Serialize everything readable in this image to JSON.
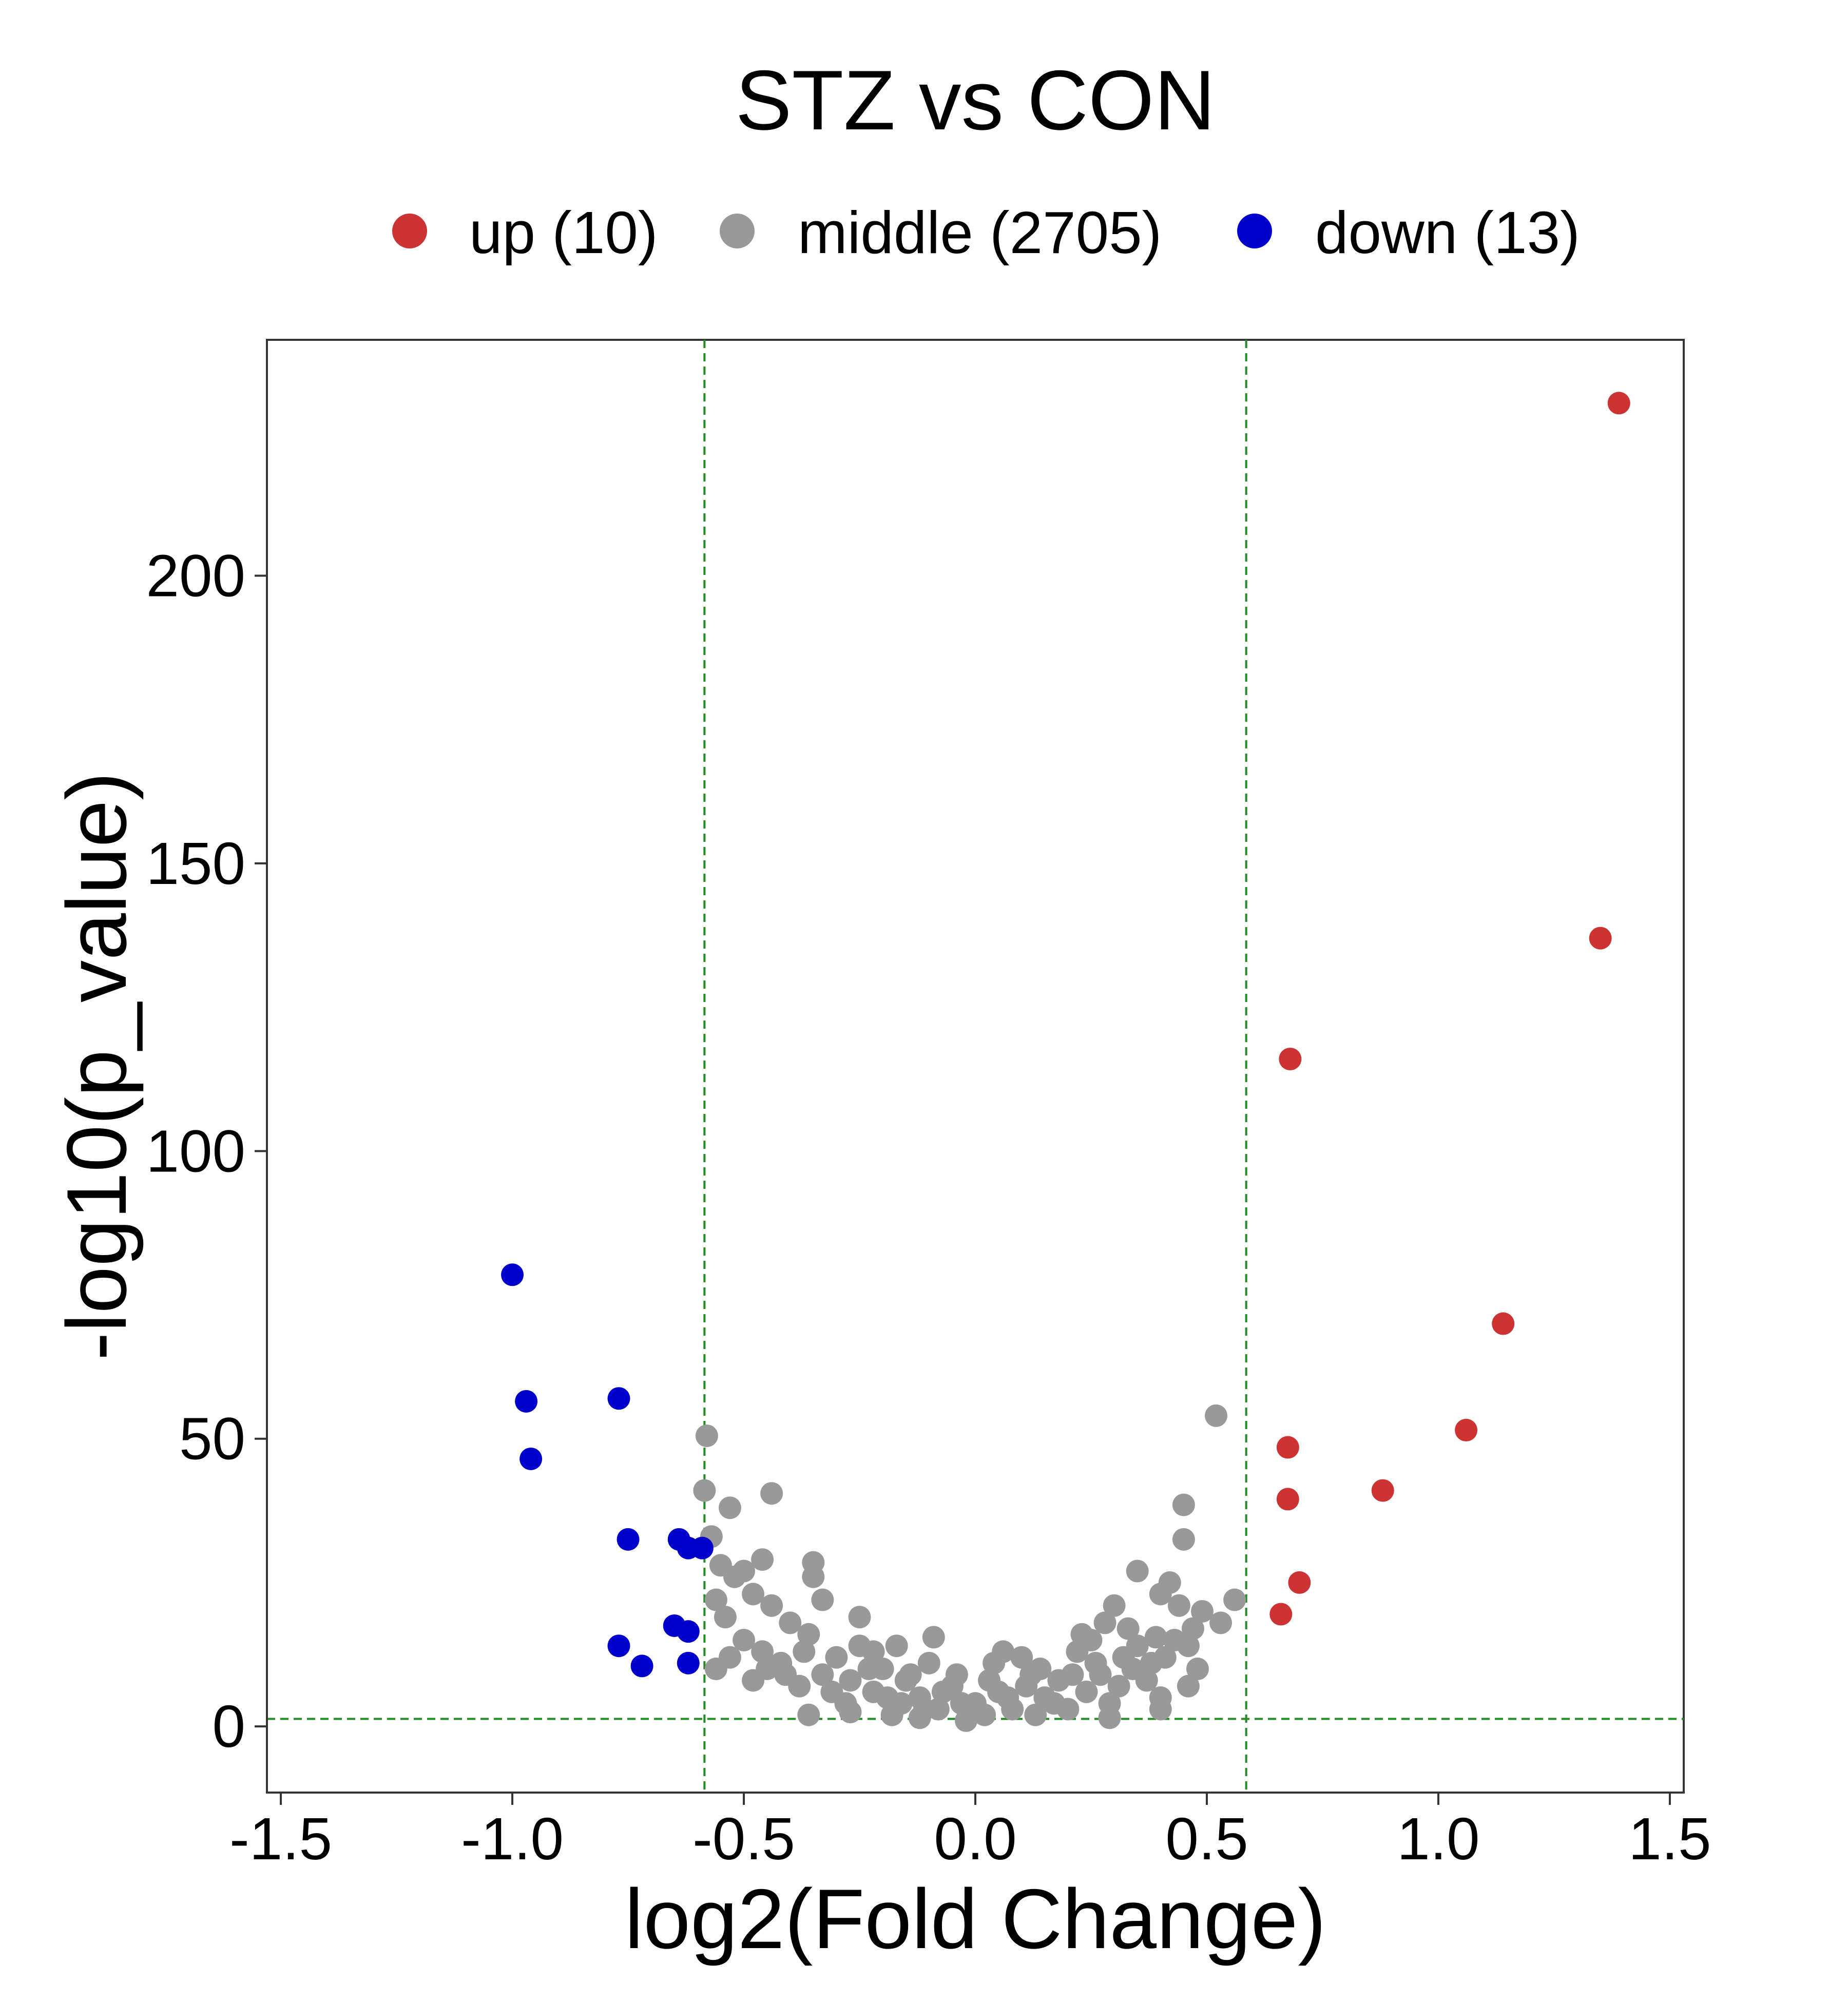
{
  "chart_data": {
    "type": "scatter",
    "title": "STZ vs CON",
    "xlabel": "log2(Fold Change)",
    "ylabel": "-log10(p_value)",
    "xlim": [
      -1.53,
      1.53
    ],
    "ylim": [
      -11.5,
      241
    ],
    "x_ticks": [
      -1.5,
      -1.0,
      -0.5,
      0.0,
      0.5,
      1.0,
      1.5
    ],
    "x_tick_labels": [
      "-1.5",
      "-1.0",
      "-0.5",
      "0.0",
      "0.5",
      "1.0",
      "1.5"
    ],
    "y_ticks": [
      0,
      50,
      100,
      150,
      200
    ],
    "y_tick_labels": [
      "0",
      "50",
      "100",
      "150",
      "200"
    ],
    "threshold_lines": {
      "color": "#228B22",
      "x": [
        -0.585,
        0.585
      ],
      "y": [
        1.3
      ]
    },
    "legend": {
      "position": "top",
      "entries": [
        {
          "label": "up (10)",
          "color": "#CD3333"
        },
        {
          "label": "middle (2705)",
          "color": "#999999"
        },
        {
          "label": "down (13)",
          "color": "#0000CD"
        }
      ]
    },
    "grid": false,
    "series": [
      {
        "name": "up (10)",
        "color": "#CD3333",
        "points": [
          [
            1.39,
            230
          ],
          [
            1.35,
            137
          ],
          [
            0.68,
            116
          ],
          [
            1.14,
            70
          ],
          [
            1.06,
            51.5
          ],
          [
            0.675,
            48.5
          ],
          [
            0.675,
            39.5
          ],
          [
            0.88,
            41
          ],
          [
            0.7,
            25
          ],
          [
            0.66,
            19.5
          ]
        ]
      },
      {
        "name": "middle (2705)",
        "color": "#999999",
        "points": [
          [
            -0.58,
            50.5
          ],
          [
            -0.585,
            41
          ],
          [
            -0.53,
            38
          ],
          [
            -0.44,
            40.5
          ],
          [
            -0.57,
            33
          ],
          [
            0.52,
            54
          ],
          [
            0.45,
            38.5
          ],
          [
            0.45,
            32.5
          ],
          [
            0.56,
            22
          ],
          [
            0.35,
            27
          ],
          [
            0.42,
            25
          ],
          [
            0.4,
            23
          ],
          [
            0.44,
            21
          ],
          [
            0.49,
            20
          ],
          [
            0.53,
            18
          ],
          [
            0.47,
            17
          ],
          [
            0.39,
            15.5
          ],
          [
            0.43,
            15
          ],
          [
            0.46,
            14
          ],
          [
            0.48,
            10
          ],
          [
            0.46,
            7
          ],
          [
            0.4,
            5
          ],
          [
            0.3,
            21
          ],
          [
            0.28,
            18
          ],
          [
            0.25,
            15
          ],
          [
            0.22,
            13
          ],
          [
            0.32,
            12
          ],
          [
            0.34,
            10
          ],
          [
            0.37,
            8
          ],
          [
            0.38,
            11
          ],
          [
            0.29,
            4
          ],
          [
            0.24,
            6
          ],
          [
            0.2,
            3
          ],
          [
            0.18,
            8
          ],
          [
            0.15,
            5
          ],
          [
            0.12,
            9
          ],
          [
            0.1,
            12
          ],
          [
            0.08,
            3
          ],
          [
            0.05,
            6
          ],
          [
            0.02,
            2
          ],
          [
            0.0,
            4
          ],
          [
            -0.02,
            1
          ],
          [
            -0.05,
            7
          ],
          [
            -0.08,
            3
          ],
          [
            -0.1,
            11
          ],
          [
            -0.12,
            5
          ],
          [
            -0.15,
            8
          ],
          [
            -0.18,
            2
          ],
          [
            -0.2,
            10
          ],
          [
            -0.22,
            6
          ],
          [
            -0.25,
            14
          ],
          [
            -0.28,
            4
          ],
          [
            -0.3,
            12
          ],
          [
            -0.33,
            9
          ],
          [
            -0.36,
            16
          ],
          [
            -0.38,
            7
          ],
          [
            -0.4,
            18
          ],
          [
            -0.42,
            11
          ],
          [
            -0.44,
            21
          ],
          [
            -0.46,
            13
          ],
          [
            -0.48,
            23
          ],
          [
            -0.5,
            15
          ],
          [
            -0.52,
            26
          ],
          [
            -0.54,
            19
          ],
          [
            -0.56,
            22
          ],
          [
            -0.55,
            28
          ],
          [
            -0.5,
            27
          ],
          [
            -0.46,
            29
          ],
          [
            -0.35,
            28.5
          ],
          [
            -0.35,
            26
          ],
          [
            -0.33,
            22
          ],
          [
            -0.25,
            19
          ],
          [
            -0.22,
            13
          ],
          [
            -0.17,
            14
          ],
          [
            -0.09,
            15.5
          ],
          [
            -0.36,
            2
          ],
          [
            -0.27,
            2.5
          ],
          [
            -0.12,
            1.5
          ],
          [
            0.29,
            1.5
          ],
          [
            0.4,
            3
          ],
          [
            -0.56,
            10
          ],
          [
            -0.53,
            12
          ],
          [
            -0.48,
            8
          ],
          [
            -0.45,
            10
          ],
          [
            -0.41,
            9
          ],
          [
            -0.37,
            13
          ],
          [
            -0.31,
            6
          ],
          [
            -0.27,
            8
          ],
          [
            -0.23,
            10
          ],
          [
            -0.19,
            5
          ],
          [
            -0.14,
            9
          ],
          [
            -0.11,
            3
          ],
          [
            -0.07,
            6
          ],
          [
            -0.03,
            4
          ],
          [
            0.03,
            8
          ],
          [
            0.07,
            5
          ],
          [
            0.11,
            7
          ],
          [
            0.14,
            10
          ],
          [
            0.17,
            4
          ],
          [
            0.21,
            9
          ],
          [
            0.26,
            11
          ],
          [
            0.31,
            7
          ],
          [
            0.35,
            14
          ],
          [
            0.41,
            12
          ],
          [
            0.04,
            11
          ],
          [
            0.06,
            13
          ],
          [
            -0.04,
            9
          ],
          [
            0.13,
            2
          ],
          [
            -0.16,
            4
          ],
          [
            0.23,
            16
          ],
          [
            0.27,
            9
          ],
          [
            0.33,
            17
          ]
        ]
      },
      {
        "name": "down (13)",
        "color": "#0000CD",
        "points": [
          [
            -1.0,
            78.5
          ],
          [
            -0.97,
            56.5
          ],
          [
            -0.96,
            46.5
          ],
          [
            -0.77,
            57
          ],
          [
            -0.75,
            32.5
          ],
          [
            -0.64,
            32.5
          ],
          [
            -0.62,
            31
          ],
          [
            -0.59,
            31
          ],
          [
            -0.65,
            17.5
          ],
          [
            -0.62,
            16.5
          ],
          [
            -0.77,
            14
          ],
          [
            -0.72,
            10.5
          ],
          [
            -0.62,
            11
          ]
        ]
      }
    ]
  }
}
